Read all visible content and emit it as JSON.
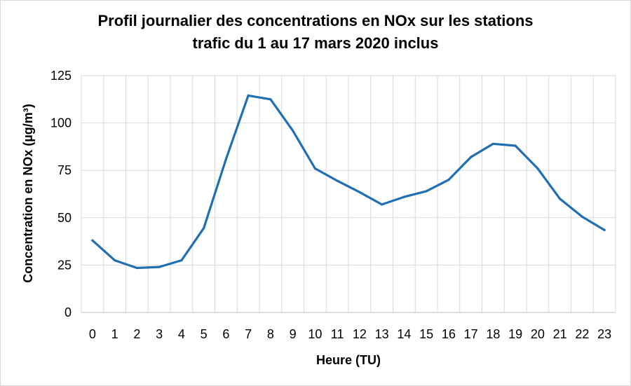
{
  "chart_data": {
    "type": "line",
    "title_line1": "Profil journalier des concentrations en NOx sur les stations",
    "title_line2": "trafic du 1 au 17 mars 2020 inclus",
    "xlabel": "Heure (TU)",
    "ylabel": "Concentration en NOx (µg/m³)",
    "ylim": [
      0,
      125
    ],
    "yticks": [
      0,
      25,
      50,
      75,
      100,
      125
    ],
    "grid": true,
    "legend": "none",
    "categories": [
      "0",
      "1",
      "2",
      "3",
      "4",
      "5",
      "6",
      "7",
      "8",
      "9",
      "10",
      "11",
      "12",
      "13",
      "14",
      "15",
      "16",
      "17",
      "18",
      "19",
      "20",
      "21",
      "22",
      "23"
    ],
    "series": [
      {
        "color": "#1f6fb2",
        "values": [
          38,
          27.5,
          23.5,
          24,
          27.5,
          44.5,
          81,
          114.5,
          112.5,
          96,
          76,
          69.5,
          63.5,
          57,
          61,
          64,
          70,
          82,
          89,
          88,
          76,
          60,
          50.5,
          43.5
        ]
      }
    ],
    "colors": {
      "grid": "#d9d9d9",
      "axis": "#bfbfbf"
    }
  }
}
